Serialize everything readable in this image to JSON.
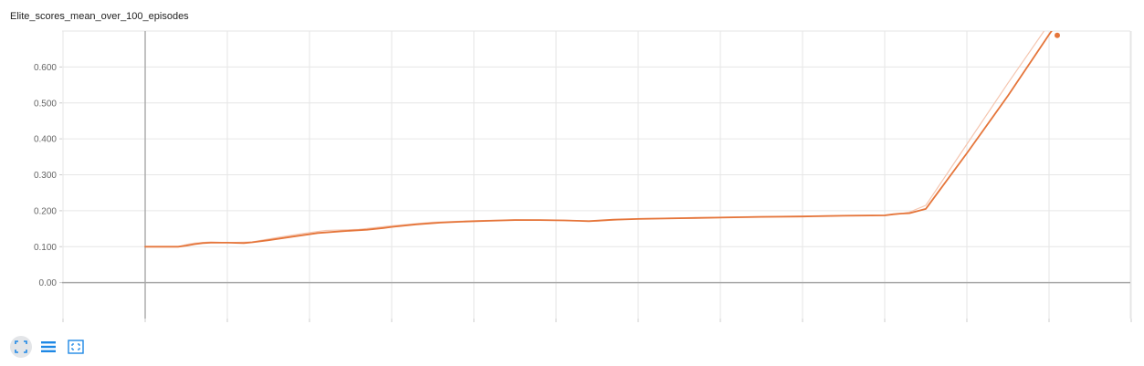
{
  "title": "Elite_scores_mean_over_100_episodes",
  "chart_data": {
    "type": "line",
    "title": "Elite_scores_mean_over_100_episodes",
    "xlabel": "",
    "ylabel": "",
    "y_tick_labels": [
      "0.600",
      "0.500",
      "0.400",
      "0.300",
      "0.200",
      "0.100",
      "0.00"
    ],
    "y_ticks": [
      0.6,
      0.5,
      0.4,
      0.3,
      0.2,
      0.1,
      0.0
    ],
    "ylim": [
      -0.1,
      0.7
    ],
    "xlim": [
      -1,
      12
    ],
    "grid": true,
    "series": [
      {
        "color": "#e5753a",
        "role": "smoothed",
        "x": [
          0.0,
          0.4,
          0.5,
          0.6,
          0.7,
          0.8,
          1.0,
          1.2,
          1.3,
          1.5,
          1.8,
          2.1,
          2.4,
          2.7,
          2.9,
          3.0,
          3.3,
          3.6,
          3.9,
          4.2,
          4.5,
          4.8,
          5.1,
          5.4,
          5.7,
          6.0,
          6.5,
          7.0,
          7.5,
          8.0,
          8.5,
          9.0,
          9.1,
          9.2,
          9.3,
          9.5,
          10.0,
          10.5,
          11.0,
          11.2
        ],
        "y": [
          0.1,
          0.1,
          0.103,
          0.107,
          0.11,
          0.111,
          0.111,
          0.11,
          0.112,
          0.118,
          0.128,
          0.138,
          0.143,
          0.147,
          0.152,
          0.155,
          0.162,
          0.167,
          0.17,
          0.172,
          0.174,
          0.174,
          0.173,
          0.171,
          0.175,
          0.177,
          0.179,
          0.181,
          0.183,
          0.184,
          0.186,
          0.187,
          0.19,
          0.192,
          0.193,
          0.205,
          0.36,
          0.52,
          0.69,
          0.755
        ]
      },
      {
        "color": "#f5c6b0",
        "role": "raw",
        "x": [
          0.0,
          0.4,
          0.5,
          0.6,
          0.8,
          1.0,
          1.3,
          1.6,
          1.9,
          2.2,
          2.6,
          3.0,
          3.5,
          4.0,
          4.5,
          5.0,
          5.5,
          6.0,
          6.5,
          7.0,
          7.5,
          8.0,
          8.5,
          9.0,
          9.2,
          9.3,
          9.5,
          10.0,
          10.5,
          11.0
        ],
        "y": [
          0.1,
          0.1,
          0.106,
          0.11,
          0.113,
          0.111,
          0.113,
          0.125,
          0.136,
          0.145,
          0.148,
          0.158,
          0.168,
          0.172,
          0.175,
          0.174,
          0.171,
          0.178,
          0.18,
          0.182,
          0.184,
          0.185,
          0.187,
          0.188,
          0.192,
          0.196,
          0.215,
          0.385,
          0.555,
          0.72
        ]
      }
    ],
    "end_point": {
      "x": 11.1,
      "y": 0.688
    }
  },
  "toolbar": {
    "buttons": [
      {
        "icon": "expand-icon",
        "active": true
      },
      {
        "icon": "data-series-icon",
        "active": false
      },
      {
        "icon": "fit-domain-icon",
        "active": false
      }
    ],
    "icon_color": "#1e88e5"
  }
}
